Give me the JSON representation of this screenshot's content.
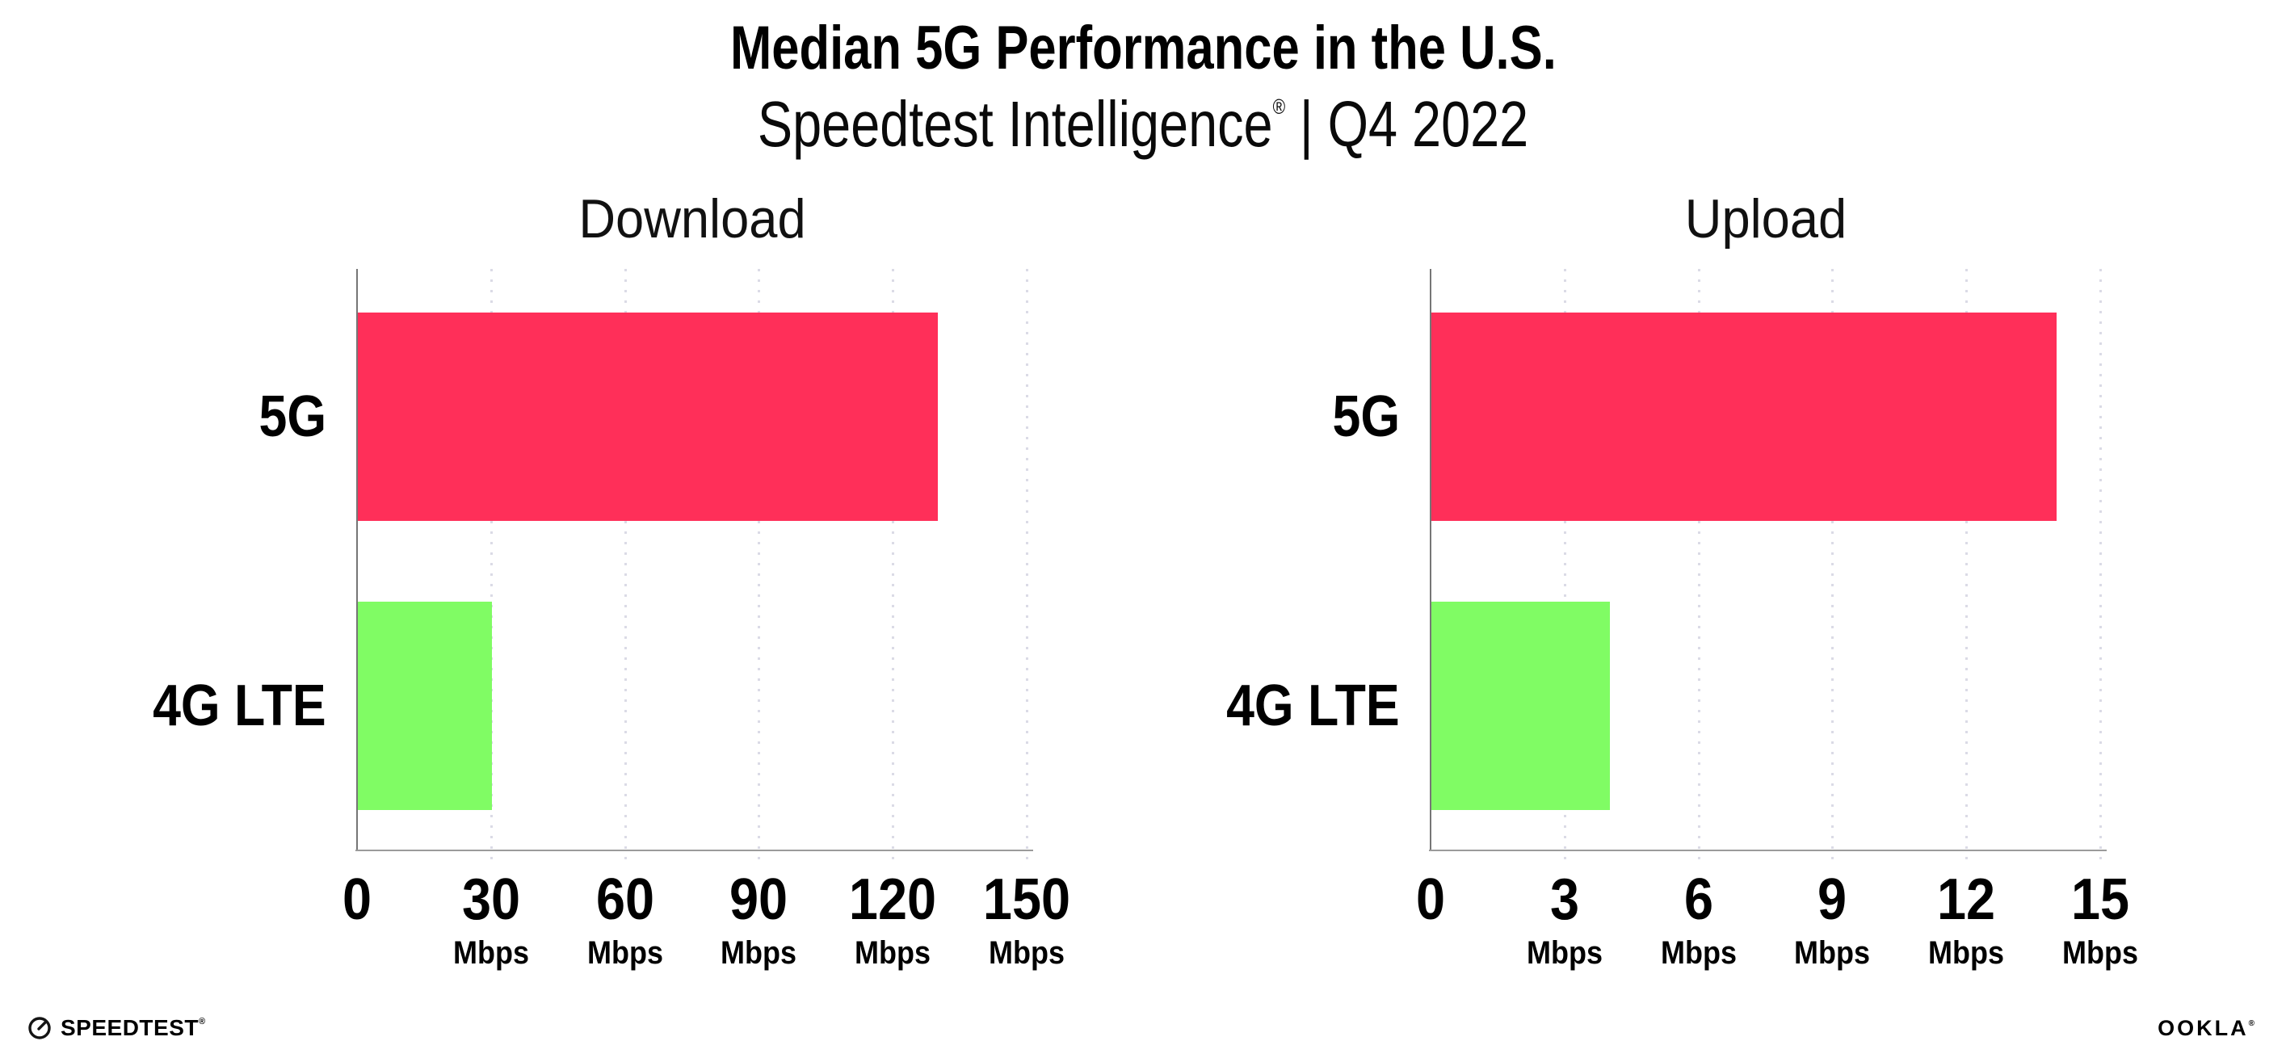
{
  "title": "Median 5G Performance in the U.S.",
  "subtitle": {
    "brand": "Speedtest Intelligence",
    "registered_mark": "®",
    "separator": "|",
    "period": "Q4 2022"
  },
  "chart_data": [
    {
      "type": "bar",
      "orientation": "horizontal",
      "title": "Download",
      "categories": [
        "5G",
        "4G LTE"
      ],
      "values": [
        130,
        30
      ],
      "unit": "Mbps",
      "xlim": [
        0,
        150
      ],
      "xticks": [
        0,
        30,
        60,
        90,
        120,
        150
      ],
      "xtick_unit": "Mbps",
      "bar_colors": [
        "#FF2F59",
        "#80FC64"
      ],
      "grid": "vertical dotted",
      "legend": "none"
    },
    {
      "type": "bar",
      "orientation": "horizontal",
      "title": "Upload",
      "categories": [
        "5G",
        "4G LTE"
      ],
      "values": [
        14,
        4
      ],
      "unit": "Mbps",
      "xlim": [
        0,
        15
      ],
      "xticks": [
        0,
        3,
        6,
        9,
        12,
        15
      ],
      "xtick_unit": "Mbps",
      "bar_colors": [
        "#FF2F59",
        "#80FC64"
      ],
      "grid": "vertical dotted",
      "legend": "none"
    }
  ],
  "footer": {
    "speedtest_label": "SPEEDTEST",
    "speedtest_mark": "®",
    "ookla_label": "OOKLA",
    "ookla_mark": "®"
  },
  "colors": {
    "bar_5g": "#FF2F59",
    "bar_4g_lte": "#80FC64",
    "gridline": "#DBDBE6",
    "axis": "#9B9B9B",
    "text": "#000000",
    "background": "#FFFFFF"
  }
}
